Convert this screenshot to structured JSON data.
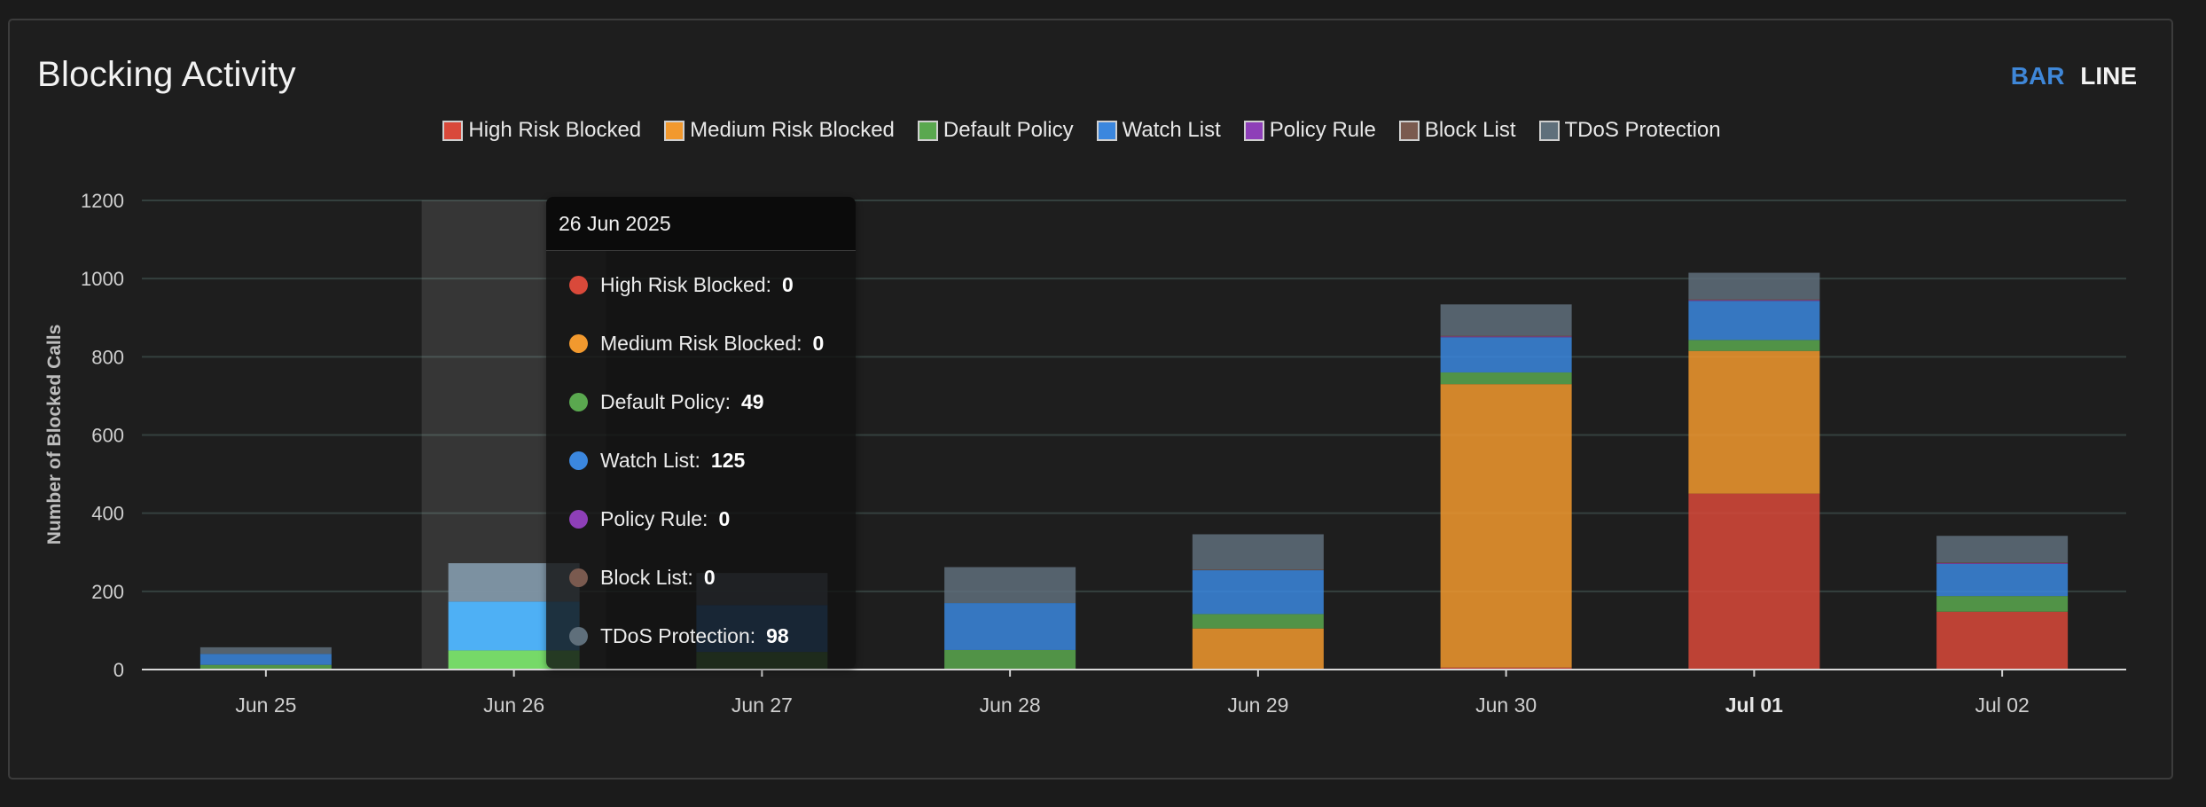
{
  "header": {
    "title": "Blocking Activity"
  },
  "toggle": {
    "bar_label": "BAR",
    "line_label": "LINE",
    "active": "bar"
  },
  "colors": {
    "high_risk": "#d9493a",
    "medium_risk": "#f2992e",
    "default_policy": "#5aa84f",
    "watch_list": "#3b87de",
    "policy_rule": "#8e3fb8",
    "block_list": "#7a5a4f",
    "tdos": "#5f6f7b",
    "grid": "#34403e",
    "axis_text": "#cfcfcf"
  },
  "legend": [
    {
      "label": "High Risk Blocked",
      "color": "#d9493a"
    },
    {
      "label": "Medium Risk Blocked",
      "color": "#f2992e"
    },
    {
      "label": "Default Policy",
      "color": "#5aa84f"
    },
    {
      "label": "Watch List",
      "color": "#3b87de"
    },
    {
      "label": "Policy Rule",
      "color": "#8e3fb8"
    },
    {
      "label": "Block List",
      "color": "#7a5a4f"
    },
    {
      "label": "TDoS Protection",
      "color": "#5f6f7b"
    }
  ],
  "chart_data": {
    "type": "bar",
    "stacked": true,
    "title": "Blocking Activity",
    "xlabel": "",
    "ylabel": "Number of Blocked Calls",
    "ylim": [
      0,
      1200
    ],
    "yticks": [
      0,
      200,
      400,
      600,
      800,
      1000,
      1200
    ],
    "categories": [
      "Jun 25",
      "Jun 26",
      "Jun 27",
      "Jun 28",
      "Jun 29",
      "Jun 30",
      "Jul 01",
      "Jul 02"
    ],
    "highlighted_category": "Jul 01",
    "hovered_category": "Jun 26",
    "grid": true,
    "legend_position": "top",
    "series": [
      {
        "name": "High Risk Blocked",
        "values": [
          0,
          0,
          0,
          0,
          0,
          5,
          450,
          148
        ]
      },
      {
        "name": "Medium Risk Blocked",
        "values": [
          0,
          0,
          0,
          0,
          105,
          725,
          365,
          0
        ]
      },
      {
        "name": "Default Policy",
        "values": [
          12,
          49,
          45,
          50,
          37,
          30,
          28,
          40
        ]
      },
      {
        "name": "Watch List",
        "values": [
          28,
          125,
          120,
          120,
          112,
          90,
          100,
          82
        ]
      },
      {
        "name": "Policy Rule",
        "values": [
          0,
          0,
          0,
          0,
          0,
          2,
          2,
          2
        ]
      },
      {
        "name": "Block List",
        "values": [
          0,
          0,
          0,
          0,
          2,
          2,
          2,
          2
        ]
      },
      {
        "name": "TDoS Protection",
        "values": [
          17,
          98,
          82,
          92,
          90,
          80,
          68,
          68
        ]
      }
    ]
  },
  "tooltip": {
    "date": "26 Jun 2025",
    "rows": [
      {
        "label": "High Risk Blocked:",
        "value": "0",
        "color": "#d9493a"
      },
      {
        "label": "Medium Risk Blocked:",
        "value": "0",
        "color": "#f2992e"
      },
      {
        "label": "Default Policy:",
        "value": "49",
        "color": "#5aa84f"
      },
      {
        "label": "Watch List:",
        "value": "125",
        "color": "#3b87de"
      },
      {
        "label": "Policy Rule:",
        "value": "0",
        "color": "#8e3fb8"
      },
      {
        "label": "Block List:",
        "value": "0",
        "color": "#7a5a4f"
      },
      {
        "label": "TDoS Protection:",
        "value": "98",
        "color": "#5f6f7b"
      }
    ]
  }
}
